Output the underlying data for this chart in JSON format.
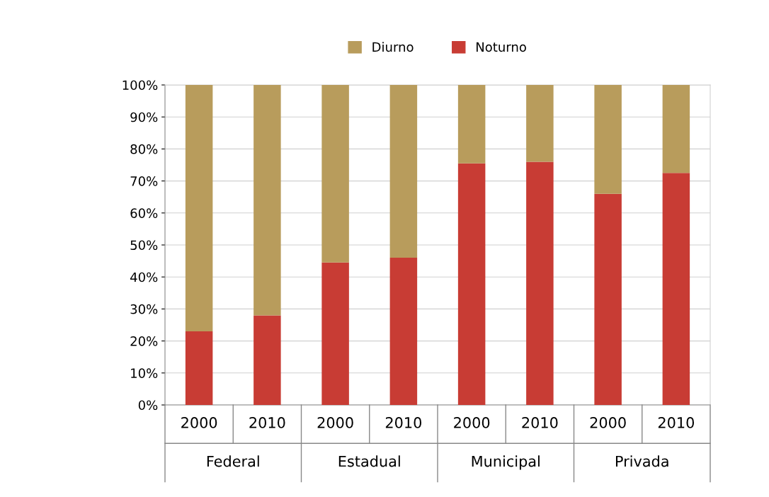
{
  "chart_data": {
    "type": "bar",
    "stacked": true,
    "categories": [
      "2000",
      "2010",
      "2000",
      "2010",
      "2000",
      "2010",
      "2000",
      "2010"
    ],
    "series": [
      {
        "name": "Noturno",
        "color": "#c83c34",
        "values": [
          23,
          28,
          44.5,
          46,
          75.5,
          76,
          66,
          72.5
        ]
      },
      {
        "name": "Diurno",
        "color": "#b89c5c",
        "values": [
          77,
          72,
          55.5,
          54,
          24.5,
          24,
          34,
          27.5
        ]
      }
    ],
    "annotations": [
      "Federal",
      "Estadual",
      "Municipal",
      "Privada"
    ],
    "ylim": [
      0,
      100
    ],
    "yticks": [
      {
        "value": 0,
        "label": "0%"
      },
      {
        "value": 10,
        "label": "10%"
      },
      {
        "value": 20,
        "label": "20%"
      },
      {
        "value": 30,
        "label": "30%"
      },
      {
        "value": 40,
        "label": "40%"
      },
      {
        "value": 50,
        "label": "50%"
      },
      {
        "value": 60,
        "label": "60%"
      },
      {
        "value": 70,
        "label": "70%"
      },
      {
        "value": 80,
        "label": "80%"
      },
      {
        "value": 90,
        "label": "90%"
      },
      {
        "value": 100,
        "label": "100%"
      }
    ],
    "grid": "y",
    "legend": "top"
  }
}
